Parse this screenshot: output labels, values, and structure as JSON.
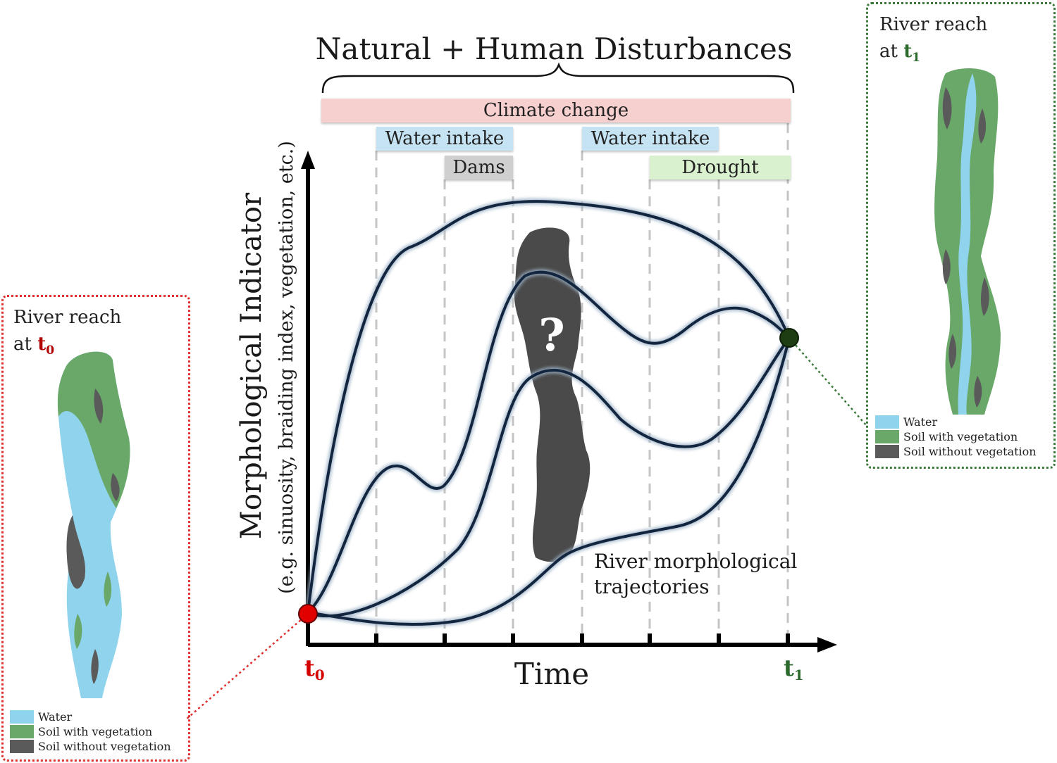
{
  "title": "Natural + Human Disturbances",
  "disturbances": [
    {
      "label": "Climate change",
      "color": "#f6cfcf"
    },
    {
      "label": "Water intake",
      "color": "#c5e3f2"
    },
    {
      "label": "Dams",
      "color": "#cfcfcf"
    },
    {
      "label": "Water intake",
      "color": "#c5e3f2"
    },
    {
      "label": "Drought",
      "color": "#d9f1cf"
    }
  ],
  "axes": {
    "y_label": "Morphological Indicator",
    "y_sublabel": "(e.g. sinuosity, braiding index, vegetation, etc.)",
    "x_label": "Time",
    "start_tick": "t",
    "start_sub": "0",
    "end_tick": "t",
    "end_sub": "1"
  },
  "unknown_mark": "?",
  "trajectories_label_line1": "River morphological",
  "trajectories_label_line2": "trajectories",
  "left_panel": {
    "title_line1": "River reach",
    "title_at": "at",
    "t": "t",
    "t_sub": "0",
    "t_color": "#b00000",
    "border_color": "#e03030"
  },
  "right_panel": {
    "title_line1": "River reach",
    "title_at": "at",
    "t": "t",
    "t_sub": "1",
    "t_color": "#2d6a2d",
    "border_color": "#3b7a3b"
  },
  "legend": [
    {
      "label": "Water",
      "color": "#8fd3ec"
    },
    {
      "label": "Soil with vegetation",
      "color": "#6aa86a"
    },
    {
      "label": "Soil without vegetation",
      "color": "#5a5a5a"
    }
  ],
  "colors": {
    "curve": "#13263f",
    "start_point": "#e00000",
    "end_point": "#1f3d12",
    "unknown_blob": "#4a4a4a"
  }
}
